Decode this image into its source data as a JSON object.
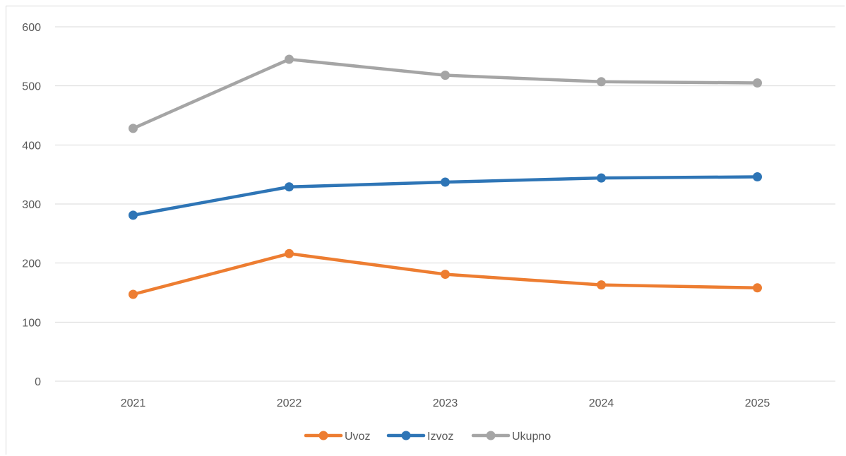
{
  "chart_data": {
    "type": "line",
    "title": "",
    "xlabel": "",
    "ylabel": "",
    "categories": [
      "2021",
      "2022",
      "2023",
      "2024",
      "2025"
    ],
    "ylim": [
      0,
      600
    ],
    "yticks": [
      0,
      100,
      200,
      300,
      400,
      500,
      600
    ],
    "grid": true,
    "legend_position": "bottom",
    "series": [
      {
        "name": "Uvoz",
        "color": "#ED7D31",
        "values": [
          147,
          216,
          181,
          163,
          158
        ]
      },
      {
        "name": "Izvoz",
        "color": "#2E75B6",
        "values": [
          281,
          329,
          337,
          344,
          346
        ]
      },
      {
        "name": "Ukupno",
        "color": "#A5A5A5",
        "values": [
          428,
          545,
          518,
          507,
          505
        ]
      }
    ]
  }
}
